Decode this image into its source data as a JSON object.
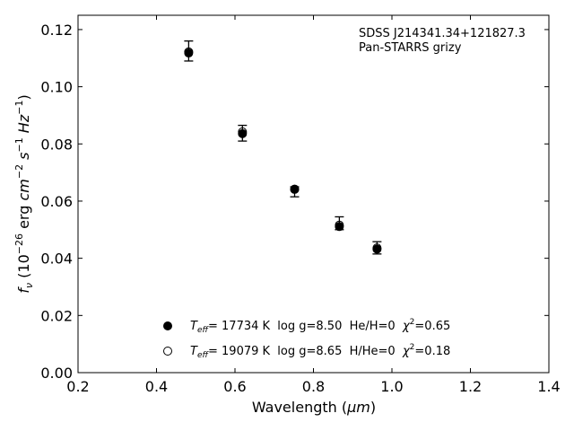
{
  "chart_data": {
    "type": "scatter",
    "xlabel_prefix": "Wavelength (",
    "xlabel_unit": "μm",
    "xlabel_suffix": ")",
    "ylabel": {
      "symbol": "f",
      "symbol_sub": "ν",
      "open": " (10",
      "exp1": "−26",
      "mid1": " erg ",
      "cm": "cm",
      "exp2": "−2",
      "s": " s",
      "exp3": "−1",
      "hz": " Hz",
      "exp4": "−1",
      "close": ")"
    },
    "xlim": [
      0.2,
      1.4
    ],
    "ylim": [
      0.0,
      0.125
    ],
    "xticks": [
      0.2,
      0.4,
      0.6,
      0.8,
      1.0,
      1.2,
      1.4
    ],
    "xtick_labels": [
      "0.2",
      "0.4",
      "0.6",
      "0.8",
      "1.0",
      "1.2",
      "1.4"
    ],
    "yticks": [
      0.0,
      0.02,
      0.04,
      0.06,
      0.08,
      0.1,
      0.12
    ],
    "ytick_labels": [
      "0.00",
      "0.02",
      "0.04",
      "0.06",
      "0.08",
      "0.10",
      "0.12"
    ],
    "grid": false,
    "legend_position": "bottom-center",
    "annotation": [
      "SDSS J214341.34+121827.3",
      "Pan-STARRS grizy"
    ],
    "observed": {
      "x": [
        0.482,
        0.619,
        0.752,
        0.866,
        0.962
      ],
      "y": [
        0.1125,
        0.084,
        0.064,
        0.0515,
        0.0433
      ],
      "yerr_low": [
        0.0035,
        0.003,
        0.0025,
        0.0015,
        0.0018
      ],
      "yerr_high": [
        0.0035,
        0.0025,
        0.001,
        0.003,
        0.0025
      ]
    },
    "series": [
      {
        "marker": "filled",
        "label": {
          "T": "T",
          "T_sub": "eff",
          "text1": "= 17734 K  log g=8.50  He/H=0  ",
          "chi": "χ",
          "chi_sup": "2",
          "text2": "=0.65"
        },
        "x": [
          0.482,
          0.619,
          0.752,
          0.866,
          0.962
        ],
        "y": [
          0.1118,
          0.0836,
          0.0641,
          0.0511,
          0.0432
        ]
      },
      {
        "marker": "open",
        "label": {
          "T": "T",
          "T_sub": "eff",
          "text1": "= 19079 K  log g=8.65  H/He=0  ",
          "chi": "χ",
          "chi_sup": "2",
          "text2": "=0.18"
        },
        "x": [
          0.482,
          0.619,
          0.752,
          0.866,
          0.962
        ],
        "y": [
          0.1122,
          0.0842,
          0.0642,
          0.0516,
          0.0436
        ]
      }
    ],
    "colors": {
      "marker": "#000000",
      "axes": "#000000",
      "background": "#ffffff"
    }
  }
}
